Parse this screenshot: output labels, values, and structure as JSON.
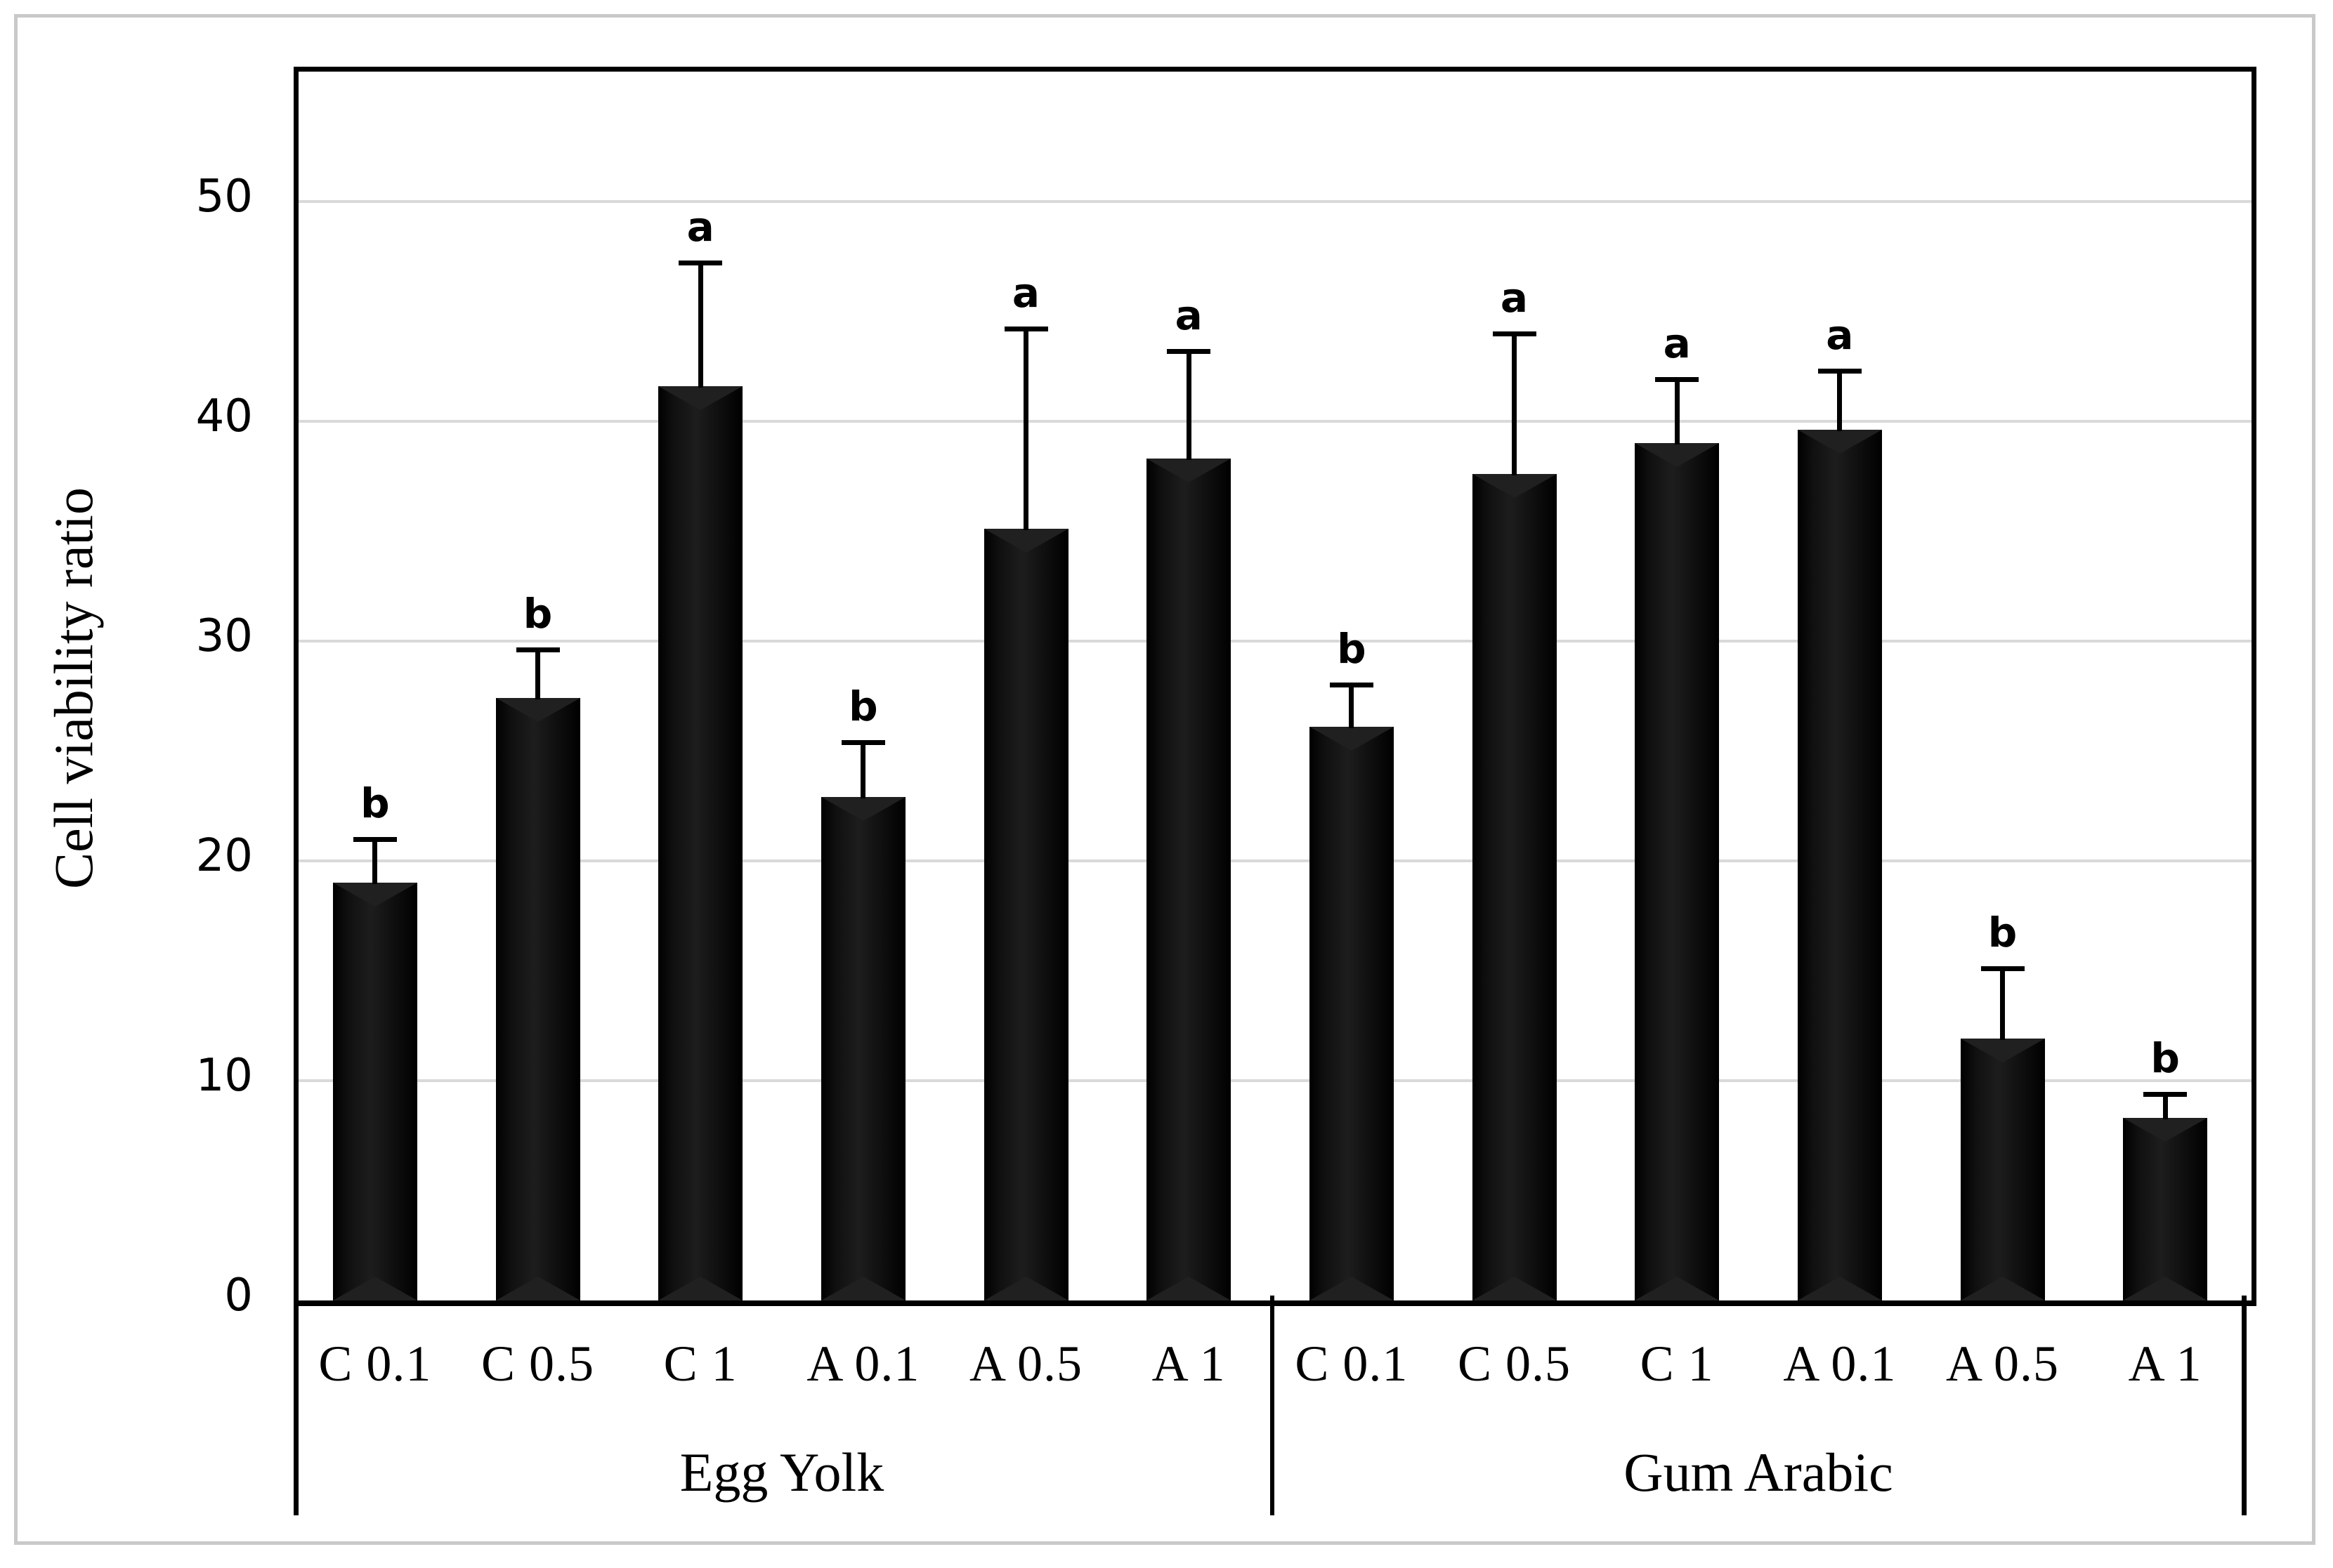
{
  "chart_data": {
    "type": "bar",
    "title": "",
    "xlabel": "",
    "ylabel": "Cell viability ratio",
    "ylim": [
      0,
      55.9
    ],
    "yticks": [
      0,
      10,
      20,
      30,
      40,
      50
    ],
    "grid": "horizontal-gray",
    "legend": "none",
    "bar_color": "#0a0a0a",
    "gridline_color": "#d9d9d9",
    "axis_color": "#000000",
    "figure_border_color": "#c9c9c9",
    "groups": [
      {
        "label": "Egg Yolk",
        "categories": [
          "C 0.1",
          "C 0.5",
          "C 1",
          "A 0.1",
          "A 0.5",
          "A 1"
        ],
        "values": [
          19.0,
          27.4,
          41.6,
          22.9,
          35.1,
          38.3
        ],
        "errors": [
          2.0,
          2.2,
          5.6,
          2.5,
          9.1,
          4.9
        ],
        "sig_letters": [
          "b",
          "b",
          "a",
          "b",
          "a",
          "a"
        ]
      },
      {
        "label": "Gum Arabic",
        "categories": [
          "C 0.1",
          "C 0.5",
          "C 1",
          "A 0.1",
          "A 0.5",
          "A 1"
        ],
        "values": [
          26.1,
          37.6,
          39.0,
          39.6,
          11.9,
          8.3
        ],
        "errors": [
          1.9,
          6.4,
          2.9,
          2.7,
          3.2,
          1.1
        ],
        "sig_letters": [
          "b",
          "a",
          "a",
          "a",
          "b",
          "b"
        ]
      }
    ]
  }
}
